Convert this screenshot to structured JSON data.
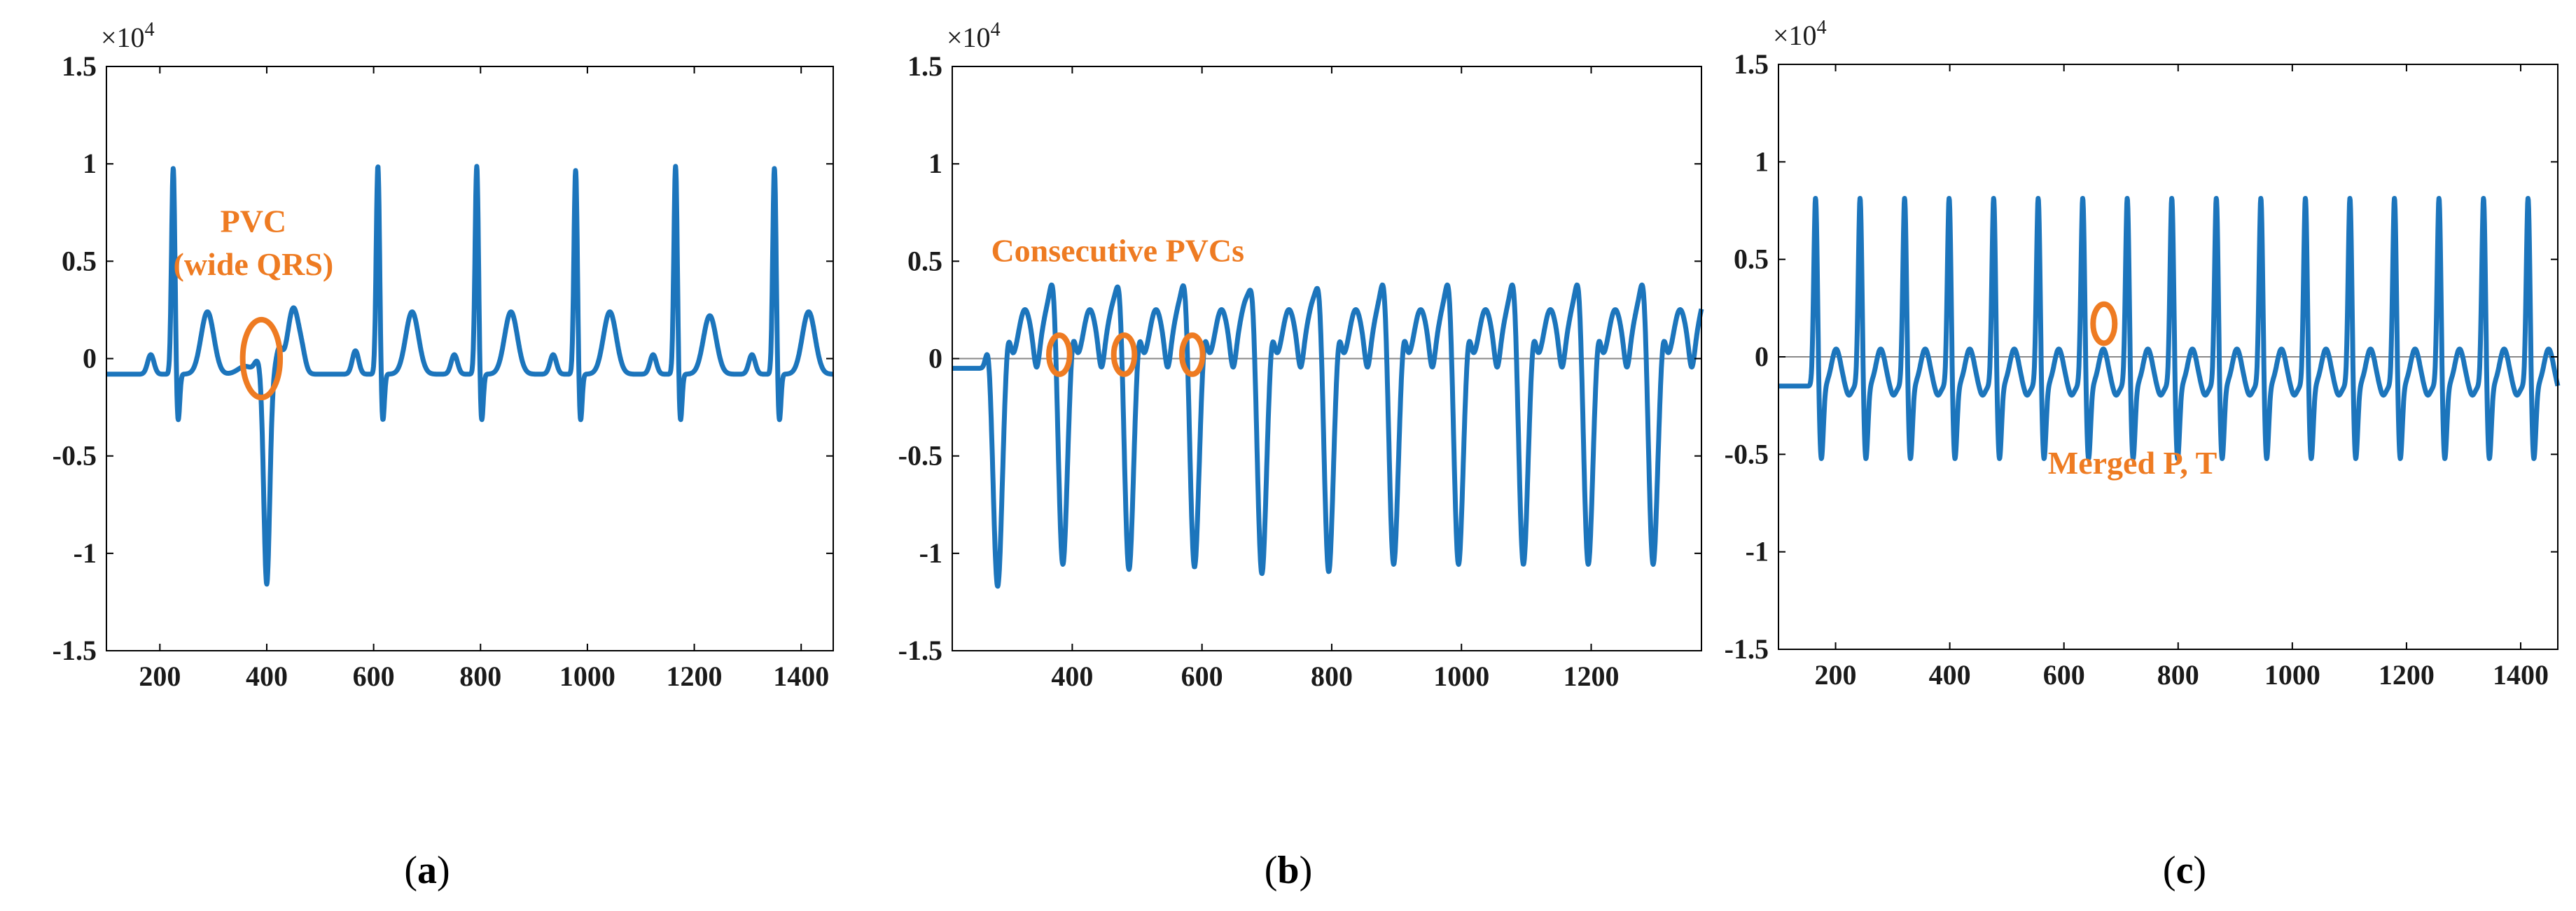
{
  "figure": {
    "signal_color": "#1C75BC",
    "annotation_color": "#EE7B22",
    "zero_line_color": "#888888",
    "axis_color": "#000000"
  },
  "chart_data": [
    {
      "type": "line",
      "panel": "a",
      "caption": {
        "open": "(",
        "letter": "a",
        "close": ")"
      },
      "exponent": {
        "base": "×10",
        "power": "4"
      },
      "xlim": [
        100,
        1460
      ],
      "ylim": [
        -1.5,
        1.5
      ],
      "xticks": [
        200,
        400,
        600,
        800,
        1000,
        1200,
        1400
      ],
      "xtick_labels": [
        "200",
        "400",
        "600",
        "800",
        "1000",
        "1200",
        "1400"
      ],
      "yticks": [
        -1.5,
        -1,
        -0.5,
        0,
        0.5,
        1,
        1.5
      ],
      "ytick_labels": [
        "-1.5",
        "-1",
        "-0.5",
        "0",
        "0.5",
        "1",
        "1.5"
      ],
      "zero_line": false,
      "baseline": -0.08,
      "beats": [
        {
          "type": "normal",
          "r": 225,
          "p": 0.1,
          "r_amp": 1.06,
          "s": -0.25,
          "t": 0.32
        },
        {
          "type": "pvc",
          "center": 395,
          "amp": -1.08,
          "pre_hump": 0.0,
          "post": 0.34
        },
        {
          "type": "normal",
          "r": 608,
          "p": 0.12,
          "r_amp": 1.07,
          "s": -0.25,
          "t": 0.32
        },
        {
          "type": "normal",
          "r": 793,
          "p": 0.1,
          "r_amp": 1.07,
          "s": -0.25,
          "t": 0.32
        },
        {
          "type": "normal",
          "r": 978,
          "p": 0.1,
          "r_amp": 1.05,
          "s": -0.25,
          "t": 0.32
        },
        {
          "type": "normal",
          "r": 1165,
          "p": 0.1,
          "r_amp": 1.07,
          "s": -0.25,
          "t": 0.3
        },
        {
          "type": "normal",
          "r": 1350,
          "p": 0.1,
          "r_amp": 1.06,
          "s": -0.25,
          "t": 0.32
        }
      ],
      "annotations": [
        {
          "lines": [
            "PVC",
            "(wide QRS)"
          ],
          "x": 375,
          "y": 0.65,
          "line_gap": 0.22
        }
      ],
      "circles": [
        {
          "x": 390,
          "y": 0.0,
          "rx": 35,
          "ry": 0.2
        }
      ]
    },
    {
      "type": "line",
      "panel": "b",
      "caption": {
        "open": "(",
        "letter": "b",
        "close": ")"
      },
      "exponent": {
        "base": "×10",
        "power": "4"
      },
      "xlim": [
        215,
        1370
      ],
      "ylim": [
        -1.5,
        1.5
      ],
      "xticks": [
        400,
        600,
        800,
        1000,
        1200
      ],
      "xtick_labels": [
        "400",
        "600",
        "800",
        "1000",
        "1200"
      ],
      "yticks": [
        -1.5,
        -1,
        -0.5,
        0,
        0.5,
        1,
        1.5
      ],
      "ytick_labels": [
        "-1.5",
        "-1",
        "-0.5",
        "0",
        "0.5",
        "1",
        "1.5"
      ],
      "zero_line": true,
      "pvc_beats": [
        285,
        385,
        487,
        588,
        692,
        795,
        895,
        995,
        1095,
        1195,
        1295
      ],
      "pvc_amp": -1.12,
      "annotations": [
        {
          "lines": [
            "Consecutive PVCs"
          ],
          "x": 470,
          "y": 0.5,
          "line_gap": 0
        }
      ],
      "circles": [
        {
          "x": 380,
          "y": 0.02,
          "rx": 16,
          "ry": 0.1
        },
        {
          "x": 480,
          "y": 0.02,
          "rx": 16,
          "ry": 0.1
        },
        {
          "x": 585,
          "y": 0.02,
          "rx": 16,
          "ry": 0.1
        }
      ]
    },
    {
      "type": "line",
      "panel": "c",
      "caption": {
        "open": "(",
        "letter": "c",
        "close": ")"
      },
      "exponent": {
        "base": "×10",
        "power": "4"
      },
      "xlim": [
        100,
        1465
      ],
      "ylim": [
        -1.5,
        1.5
      ],
      "xticks": [
        200,
        400,
        600,
        800,
        1000,
        1200,
        1400
      ],
      "xtick_labels": [
        "200",
        "400",
        "600",
        "800",
        "1000",
        "1200",
        "1400"
      ],
      "yticks": [
        -1.5,
        -1,
        -0.5,
        0,
        0.5,
        1,
        1.5
      ],
      "ytick_labels": [
        "-1.5",
        "-1",
        "-0.5",
        "0",
        "0.5",
        "1",
        "1.5"
      ],
      "zero_line": true,
      "tachy": {
        "start": 165,
        "period": 78,
        "count": 17,
        "r_amp": 0.97,
        "s": -0.38,
        "pt": 0.19,
        "baseline": -0.15
      },
      "annotations": [
        {
          "lines": [
            "Merged P, T"
          ],
          "x": 720,
          "y": -0.6,
          "line_gap": 0
        }
      ],
      "circles": [
        {
          "x": 670,
          "y": 0.17,
          "rx": 19,
          "ry": 0.1
        }
      ]
    }
  ]
}
